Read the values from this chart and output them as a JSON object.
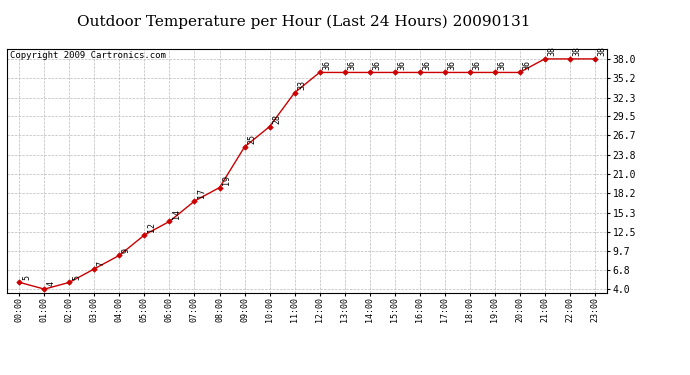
{
  "title": "Outdoor Temperature per Hour (Last 24 Hours) 20090131",
  "copyright": "Copyright 2009 Cartronics.com",
  "hours": [
    0,
    1,
    2,
    3,
    4,
    5,
    6,
    7,
    8,
    9,
    10,
    11,
    12,
    13,
    14,
    15,
    16,
    17,
    18,
    19,
    20,
    21,
    22,
    23
  ],
  "temps": [
    5,
    4,
    5,
    7,
    9,
    12,
    14,
    17,
    19,
    25,
    28,
    33,
    36,
    36,
    36,
    36,
    36,
    36,
    36,
    36,
    36,
    38,
    38,
    38
  ],
  "xlabels": [
    "00:00",
    "01:00",
    "02:00",
    "03:00",
    "04:00",
    "05:00",
    "06:00",
    "07:00",
    "08:00",
    "09:00",
    "10:00",
    "11:00",
    "12:00",
    "13:00",
    "14:00",
    "15:00",
    "16:00",
    "17:00",
    "18:00",
    "19:00",
    "20:00",
    "21:00",
    "22:00",
    "23:00"
  ],
  "yticks": [
    4.0,
    6.8,
    9.7,
    12.5,
    15.3,
    18.2,
    21.0,
    23.8,
    26.7,
    29.5,
    32.3,
    35.2,
    38.0
  ],
  "ymin": 3.5,
  "ymax": 39.5,
  "line_color": "#cc0000",
  "marker_color": "#cc0000",
  "bg_color": "white",
  "grid_color": "#bbbbbb",
  "title_fontsize": 11,
  "copyright_fontsize": 6.5,
  "annotation_fontsize": 6,
  "xtick_fontsize": 6,
  "ytick_fontsize": 7
}
